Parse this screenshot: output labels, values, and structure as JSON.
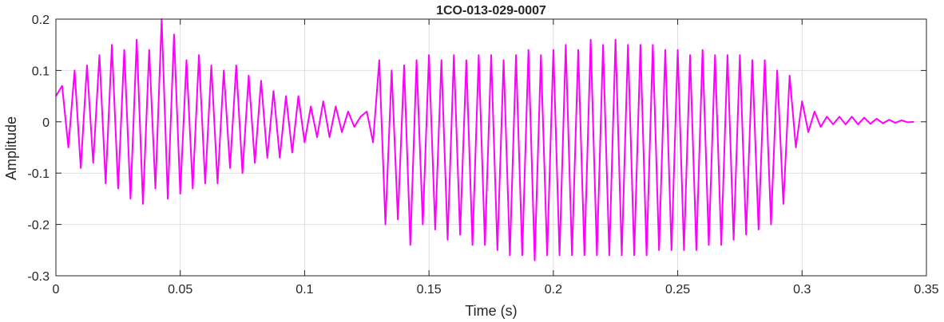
{
  "chart_data": {
    "type": "line",
    "title": "1CO-013-029-0007",
    "xlabel": "Time (s)",
    "ylabel": "Amplitude",
    "xlim": [
      0,
      0.35
    ],
    "ylim": [
      -0.3,
      0.2
    ],
    "xticks": [
      0,
      0.05,
      0.1,
      0.15,
      0.2,
      0.25,
      0.3,
      0.35
    ],
    "xtick_labels": [
      "0",
      "0.05",
      "0.1",
      "0.15",
      "0.2",
      "0.25",
      "0.3",
      "0.35"
    ],
    "yticks": [
      -0.3,
      -0.2,
      -0.1,
      0,
      0.1,
      0.2
    ],
    "ytick_labels": [
      "-0.3",
      "-0.2",
      "-0.1",
      "0",
      "0.1",
      "0.2"
    ],
    "grid": true,
    "series": [
      {
        "color": "#ff00ff",
        "x": [
          0.0,
          0.0025,
          0.005,
          0.0075,
          0.01,
          0.0125,
          0.015,
          0.0175,
          0.02,
          0.0225,
          0.025,
          0.0275,
          0.03,
          0.0325,
          0.035,
          0.0375,
          0.04,
          0.0425,
          0.045,
          0.0475,
          0.05,
          0.0525,
          0.055,
          0.0575,
          0.06,
          0.0625,
          0.065,
          0.0675,
          0.07,
          0.0725,
          0.075,
          0.0775,
          0.08,
          0.0825,
          0.085,
          0.0875,
          0.09,
          0.0925,
          0.095,
          0.0975,
          0.1,
          0.1025,
          0.105,
          0.1075,
          0.11,
          0.1125,
          0.115,
          0.1175,
          0.12,
          0.1225,
          0.125,
          0.1275,
          0.13,
          0.1325,
          0.135,
          0.1375,
          0.14,
          0.1425,
          0.145,
          0.1475,
          0.15,
          0.1525,
          0.155,
          0.1575,
          0.16,
          0.1625,
          0.165,
          0.1675,
          0.17,
          0.1725,
          0.175,
          0.1775,
          0.18,
          0.1825,
          0.185,
          0.1875,
          0.19,
          0.1925,
          0.195,
          0.1975,
          0.2,
          0.2025,
          0.205,
          0.2075,
          0.21,
          0.2125,
          0.215,
          0.2175,
          0.22,
          0.2225,
          0.225,
          0.2275,
          0.23,
          0.2325,
          0.235,
          0.2375,
          0.24,
          0.2425,
          0.245,
          0.2475,
          0.25,
          0.2525,
          0.255,
          0.2575,
          0.26,
          0.2625,
          0.265,
          0.2675,
          0.27,
          0.2725,
          0.275,
          0.2775,
          0.28,
          0.2825,
          0.285,
          0.2875,
          0.29,
          0.2925,
          0.295,
          0.2975,
          0.3,
          0.3025,
          0.305,
          0.3075,
          0.31,
          0.3125,
          0.315,
          0.3175,
          0.32,
          0.3225,
          0.325,
          0.3275,
          0.33,
          0.3325,
          0.335,
          0.3375,
          0.34,
          0.3425,
          0.345
        ],
        "y": [
          0.05,
          0.07,
          -0.05,
          0.1,
          -0.09,
          0.11,
          -0.08,
          0.13,
          -0.12,
          0.15,
          -0.13,
          0.14,
          -0.15,
          0.16,
          -0.16,
          0.14,
          -0.13,
          0.2,
          -0.15,
          0.17,
          -0.14,
          0.12,
          -0.13,
          0.13,
          -0.12,
          0.11,
          -0.12,
          0.1,
          -0.09,
          0.11,
          -0.1,
          0.09,
          -0.08,
          0.08,
          -0.07,
          0.06,
          -0.07,
          0.05,
          -0.06,
          0.05,
          -0.04,
          0.03,
          -0.03,
          0.04,
          -0.03,
          0.03,
          -0.02,
          0.02,
          -0.01,
          0.01,
          0.02,
          -0.04,
          0.12,
          -0.2,
          0.1,
          -0.19,
          0.11,
          -0.24,
          0.12,
          -0.2,
          0.13,
          -0.21,
          0.12,
          -0.23,
          0.13,
          -0.22,
          0.12,
          -0.24,
          0.13,
          -0.24,
          0.13,
          -0.25,
          0.12,
          -0.26,
          0.13,
          -0.26,
          0.14,
          -0.27,
          0.13,
          -0.26,
          0.14,
          -0.26,
          0.15,
          -0.26,
          0.14,
          -0.26,
          0.16,
          -0.26,
          0.15,
          -0.26,
          0.16,
          -0.26,
          0.15,
          -0.26,
          0.15,
          -0.26,
          0.15,
          -0.25,
          0.14,
          -0.25,
          0.14,
          -0.25,
          0.13,
          -0.25,
          0.14,
          -0.24,
          0.13,
          -0.24,
          0.13,
          -0.23,
          0.13,
          -0.22,
          0.12,
          -0.21,
          0.12,
          -0.2,
          0.1,
          -0.16,
          0.09,
          -0.05,
          0.04,
          -0.02,
          0.02,
          -0.01,
          0.01,
          -0.005,
          0.01,
          -0.005,
          0.01,
          -0.005,
          0.008,
          -0.004,
          0.006,
          -0.003,
          0.004,
          -0.002,
          0.003,
          -0.001,
          0.0
        ]
      }
    ]
  }
}
